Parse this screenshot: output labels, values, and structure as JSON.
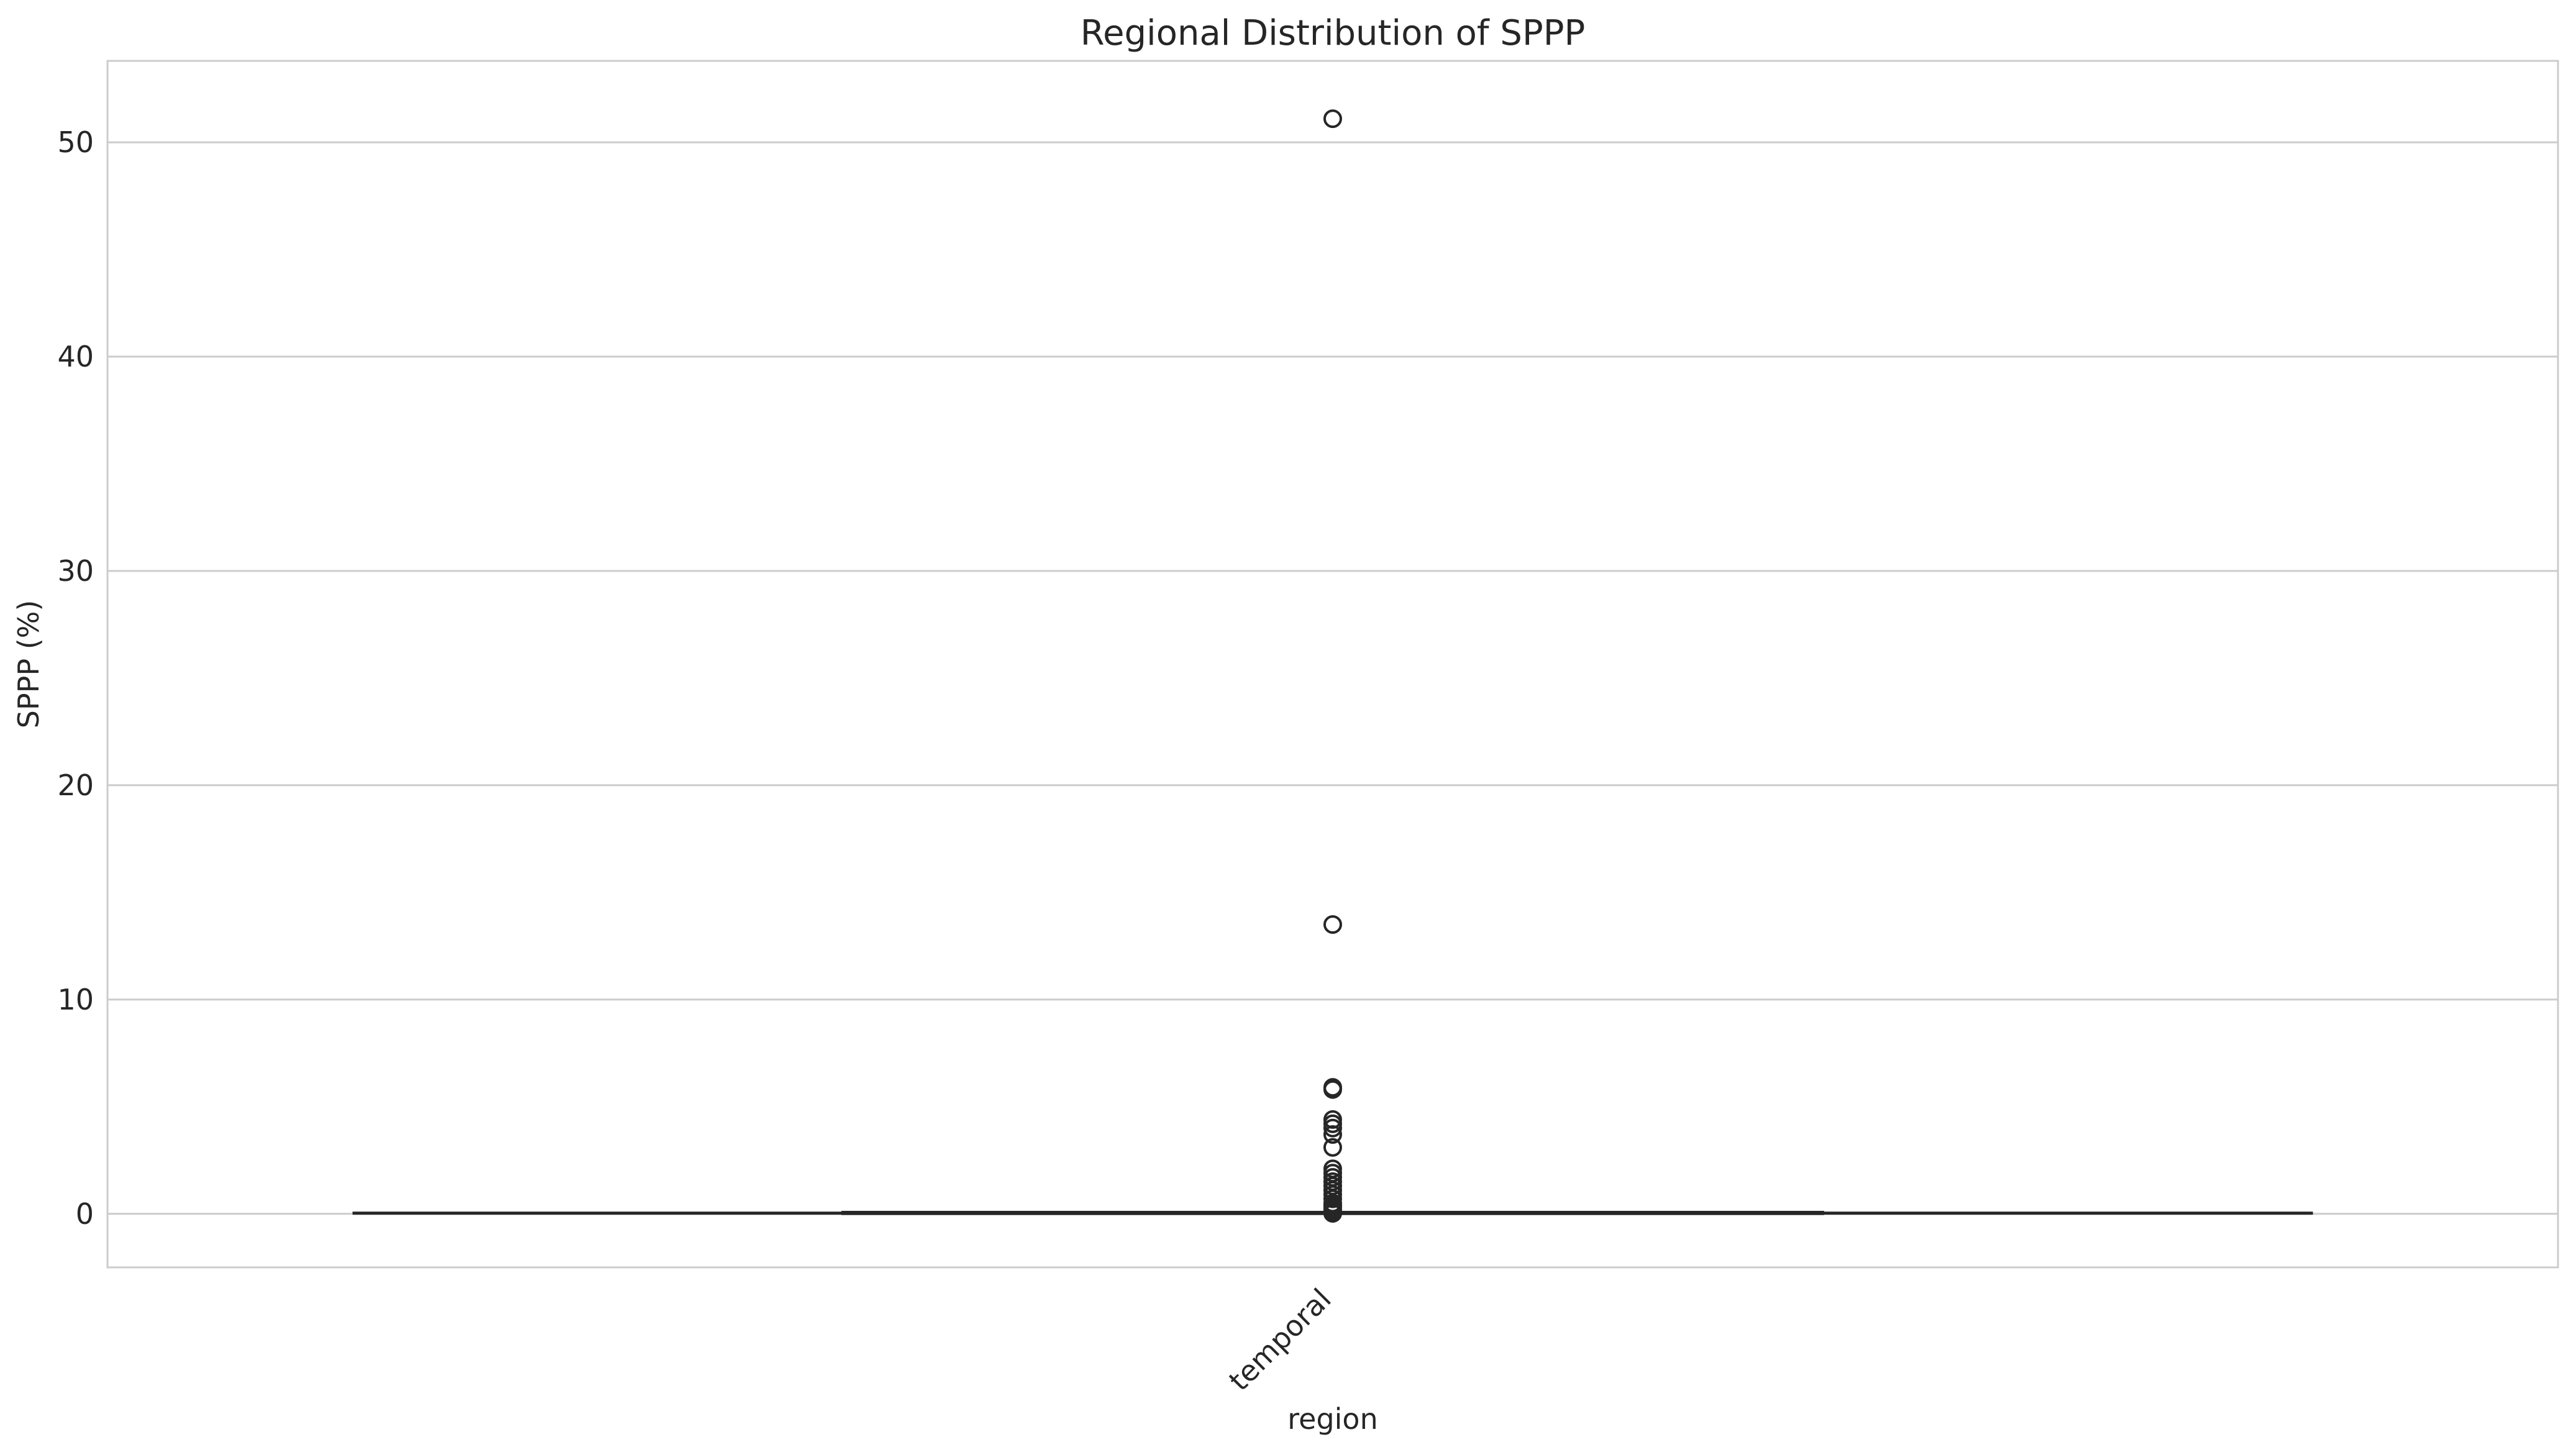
{
  "chart_data": {
    "type": "box",
    "title": "Regional Distribution of SPPP",
    "xlabel": "region",
    "ylabel": "SPPP (%)",
    "categories": [
      "temporal"
    ],
    "ylim": [
      -2.5,
      53.8
    ],
    "yticks": [
      0,
      10,
      20,
      30,
      40,
      50
    ],
    "grid": true,
    "series": [
      {
        "category": "temporal",
        "whisker_low": 0.0,
        "q1": 0.0,
        "median": 0.03,
        "q3": 0.08,
        "whisker_high": 0.1,
        "outliers": [
          51.1,
          13.5,
          5.9,
          5.8,
          4.4,
          4.2,
          4.0,
          3.7,
          3.1,
          2.1,
          1.9,
          1.7,
          1.5,
          1.3,
          1.1,
          0.9,
          0.7,
          0.5,
          0.4,
          0.3,
          0.2,
          0.1,
          0.05,
          0.02
        ]
      }
    ]
  }
}
